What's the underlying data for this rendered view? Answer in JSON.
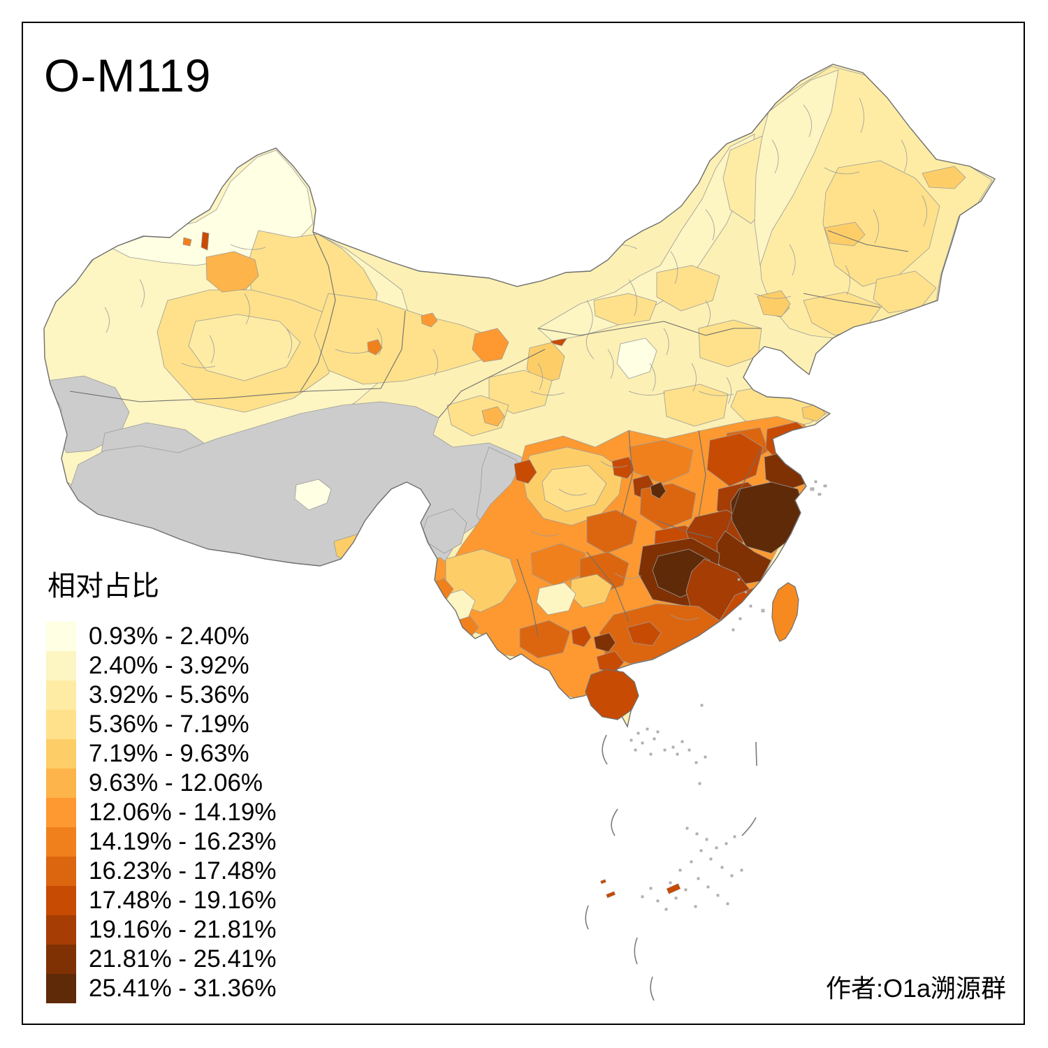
{
  "title": "O-M119",
  "legend": {
    "title": "相对占比",
    "classes": [
      {
        "label": "0.93% - 2.40%",
        "color": "#FFFFE3"
      },
      {
        "label": "2.40% - 3.92%",
        "color": "#FDF5C2"
      },
      {
        "label": "3.92% - 5.36%",
        "color": "#FEECA4"
      },
      {
        "label": "5.36% - 7.19%",
        "color": "#FEE18A"
      },
      {
        "label": "7.19% - 9.63%",
        "color": "#FDCE68"
      },
      {
        "label": "9.63% - 12.06%",
        "color": "#FDB44A"
      },
      {
        "label": "12.06% - 14.19%",
        "color": "#FD9930"
      },
      {
        "label": "14.19% - 16.23%",
        "color": "#F0801C"
      },
      {
        "label": "16.23% - 17.48%",
        "color": "#DC660F"
      },
      {
        "label": "17.48% - 19.16%",
        "color": "#C84B04"
      },
      {
        "label": "19.16% - 21.81%",
        "color": "#A63D04"
      },
      {
        "label": "21.81% - 25.41%",
        "color": "#7F3103"
      },
      {
        "label": "25.41% - 31.36%",
        "color": "#5F2A08"
      }
    ]
  },
  "credit": "作者:O1a溯源群",
  "map": {
    "subject": "China prefecture-level choropleth of O-M119 relative frequency",
    "no_data_color": "#CCCCCC",
    "sea_color": "#FFFFFF",
    "prefecture_boundary_color": "#8E8E8E",
    "province_boundary_color": "#6E6E6E",
    "frame_color": "#000000"
  }
}
